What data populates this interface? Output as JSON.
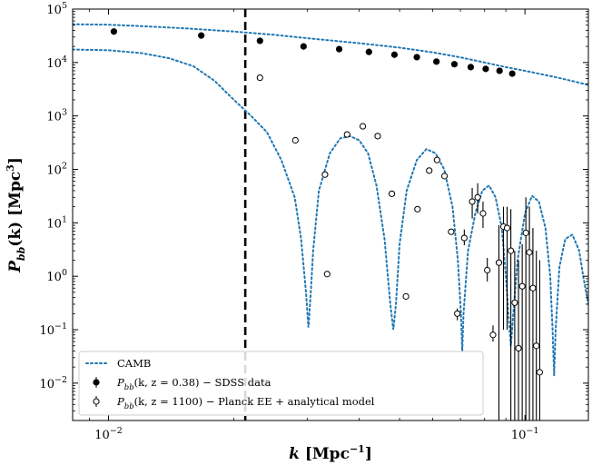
{
  "chart_data": {
    "type": "scatter",
    "x_scale": "log",
    "y_scale": "log",
    "xlim": [
      0.0082,
      0.142
    ],
    "ylim": [
      0.002,
      100000
    ],
    "xlabel": {
      "base": "k",
      "unit": " [Mpc",
      "unit_exp": "−1",
      "unit_end": "]"
    },
    "ylabel": {
      "base": "P",
      "sub": "bb",
      "args": "(k) [Mpc",
      "exp": "3",
      "end": "]"
    },
    "x_ticks": [
      {
        "value": 0.01,
        "label_base": "10",
        "label_exp": "−2"
      },
      {
        "value": 0.1,
        "label_base": "10",
        "label_exp": "−1"
      }
    ],
    "y_ticks": [
      {
        "value": 0.01,
        "label_base": "10",
        "label_exp": "−2"
      },
      {
        "value": 0.1,
        "label_base": "10",
        "label_exp": "−1"
      },
      {
        "value": 1,
        "label_base": "10",
        "label_exp": "0"
      },
      {
        "value": 10,
        "label_base": "10",
        "label_exp": "1"
      },
      {
        "value": 100,
        "label_base": "10",
        "label_exp": "2"
      },
      {
        "value": 1000,
        "label_base": "10",
        "label_exp": "3"
      },
      {
        "value": 10000,
        "label_base": "10",
        "label_exp": "4"
      },
      {
        "value": 100000,
        "label_base": "10",
        "label_exp": "5"
      }
    ],
    "vline": {
      "x": 0.0213,
      "style": "dashed",
      "color": "#000000"
    },
    "colors": {
      "camb": "#1f77b4",
      "points": "#000000"
    },
    "legend": {
      "position": "lower-left",
      "entries": [
        {
          "marker": "dotted-line",
          "label": "CAMB"
        },
        {
          "marker": "filled-circle",
          "label": "P_bb(k, z = 0.38) − SDSS data"
        },
        {
          "marker": "open-circle",
          "label": "P_bb(k, z = 1100) − Planck EE + analytical model"
        }
      ]
    },
    "series": [
      {
        "kind": "line",
        "style": "dotted",
        "points": [
          [
            0.0082,
            52000
          ],
          [
            0.01,
            51000
          ],
          [
            0.012,
            48000
          ],
          [
            0.015,
            44000
          ],
          [
            0.02,
            38000
          ],
          [
            0.025,
            33000
          ],
          [
            0.03,
            28500
          ],
          [
            0.04,
            23000
          ],
          [
            0.05,
            19000
          ],
          [
            0.06,
            15500
          ],
          [
            0.07,
            12500
          ],
          [
            0.08,
            10000
          ],
          [
            0.09,
            8200
          ],
          [
            0.1,
            7000
          ],
          [
            0.11,
            6000
          ],
          [
            0.12,
            5200
          ],
          [
            0.13,
            4500
          ],
          [
            0.142,
            3800
          ]
        ]
      },
      {
        "kind": "line",
        "style": "dotted",
        "points": [
          [
            0.0082,
            17500
          ],
          [
            0.01,
            17000
          ],
          [
            0.012,
            15000
          ],
          [
            0.014,
            12000
          ],
          [
            0.016,
            8500
          ],
          [
            0.018,
            4500
          ],
          [
            0.02,
            2000
          ],
          [
            0.022,
            1000
          ],
          [
            0.024,
            500
          ],
          [
            0.026,
            150
          ],
          [
            0.028,
            30
          ],
          [
            0.029,
            5
          ],
          [
            0.0298,
            0.5
          ],
          [
            0.0302,
            0.11
          ],
          [
            0.0306,
            0.5
          ],
          [
            0.031,
            3
          ],
          [
            0.032,
            40
          ],
          [
            0.034,
            200
          ],
          [
            0.036,
            380
          ],
          [
            0.038,
            420
          ],
          [
            0.04,
            350
          ],
          [
            0.042,
            200
          ],
          [
            0.044,
            50
          ],
          [
            0.046,
            5
          ],
          [
            0.0475,
            0.3
          ],
          [
            0.0483,
            0.1
          ],
          [
            0.049,
            0.3
          ],
          [
            0.05,
            4
          ],
          [
            0.052,
            40
          ],
          [
            0.055,
            150
          ],
          [
            0.058,
            240
          ],
          [
            0.061,
            200
          ],
          [
            0.064,
            100
          ],
          [
            0.067,
            20
          ],
          [
            0.069,
            2
          ],
          [
            0.0702,
            0.2
          ],
          [
            0.0707,
            0.04
          ],
          [
            0.0712,
            0.2
          ],
          [
            0.073,
            3
          ],
          [
            0.076,
            15
          ],
          [
            0.079,
            40
          ],
          [
            0.082,
            50
          ],
          [
            0.085,
            30
          ],
          [
            0.088,
            8
          ],
          [
            0.09,
            1
          ],
          [
            0.0915,
            0.15
          ],
          [
            0.0925,
            0.05
          ],
          [
            0.0935,
            0.15
          ],
          [
            0.096,
            2
          ],
          [
            0.1,
            15
          ],
          [
            0.104,
            32
          ],
          [
            0.108,
            25
          ],
          [
            0.112,
            8
          ],
          [
            0.115,
            1
          ],
          [
            0.1165,
            0.1
          ],
          [
            0.1175,
            0.014
          ],
          [
            0.1185,
            0.1
          ],
          [
            0.121,
            1.5
          ],
          [
            0.125,
            5
          ],
          [
            0.13,
            6
          ],
          [
            0.135,
            3
          ],
          [
            0.138,
            1
          ],
          [
            0.142,
            0.3
          ]
        ]
      },
      {
        "name": "P_bb(k, z = 0.38) − SDSS data",
        "kind": "points",
        "marker": "filled",
        "points": [
          [
            0.0103,
            38000
          ],
          [
            0.0167,
            32000
          ],
          [
            0.0231,
            25500
          ],
          [
            0.0294,
            20000
          ],
          [
            0.0358,
            17800
          ],
          [
            0.0422,
            15800
          ],
          [
            0.0486,
            14000
          ],
          [
            0.055,
            12600
          ],
          [
            0.0613,
            10400
          ],
          [
            0.0677,
            9300
          ],
          [
            0.0741,
            8200
          ],
          [
            0.0805,
            7600
          ],
          [
            0.0869,
            7000
          ],
          [
            0.0932,
            6200
          ]
        ]
      },
      {
        "name": "P_bb(k, z = 1100) − Planck EE + analytical model",
        "kind": "points",
        "marker": "open",
        "points": [
          [
            0.0231,
            5200,
            null,
            null
          ],
          [
            0.0281,
            350,
            null,
            null
          ],
          [
            0.0331,
            80,
            null,
            null
          ],
          [
            0.0335,
            1.1,
            null,
            null
          ],
          [
            0.0374,
            450,
            null,
            null
          ],
          [
            0.0408,
            640,
            null,
            null
          ],
          [
            0.0443,
            420,
            null,
            null
          ],
          [
            0.0479,
            35,
            null,
            null
          ],
          [
            0.0518,
            0.42,
            null,
            null
          ],
          [
            0.0552,
            18,
            null,
            null
          ],
          [
            0.0589,
            95,
            null,
            null
          ],
          [
            0.0615,
            150,
            null,
            null
          ],
          [
            0.0641,
            75,
            null,
            null
          ],
          [
            0.0665,
            6.8,
            null,
            null
          ],
          [
            0.0688,
            0.2,
            0.15,
            0.25
          ],
          [
            0.0715,
            5.2,
            3.8,
            7.5
          ],
          [
            0.0747,
            25,
            12,
            45
          ],
          [
            0.077,
            30,
            15,
            55
          ],
          [
            0.0793,
            15,
            8,
            25
          ],
          [
            0.0812,
            1.3,
            0.8,
            2.2
          ],
          [
            0.0838,
            0.08,
            0.06,
            0.12
          ],
          [
            0.0866,
            1.8,
            0.002,
            9
          ],
          [
            0.0888,
            8.5,
            0.1,
            20
          ],
          [
            0.0906,
            8.0,
            0.1,
            20
          ],
          [
            0.0925,
            3.0,
            0.002,
            18
          ],
          [
            0.0945,
            0.32,
            0.002,
            3
          ],
          [
            0.0965,
            0.045,
            0.002,
            2
          ],
          [
            0.0985,
            0.65,
            0.002,
            4
          ],
          [
            0.1005,
            6.5,
            0.002,
            30
          ],
          [
            0.1025,
            2.8,
            0.002,
            20
          ],
          [
            0.1045,
            0.6,
            0.002,
            8
          ],
          [
            0.1065,
            0.05,
            0.002,
            3
          ],
          [
            0.1085,
            0.016,
            0.002,
            2
          ]
        ]
      }
    ]
  }
}
